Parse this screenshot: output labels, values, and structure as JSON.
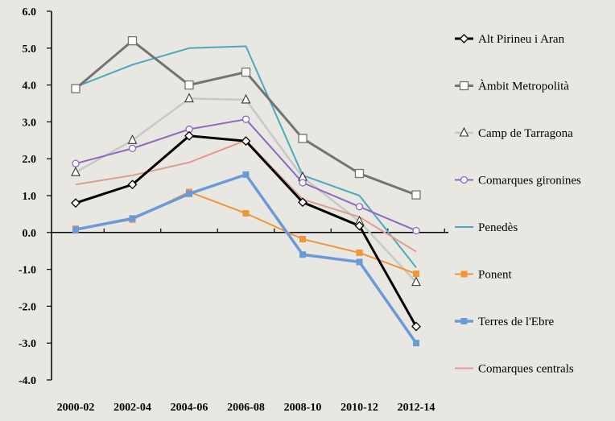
{
  "chart_data": {
    "type": "line",
    "title": "",
    "xlabel": "",
    "ylabel": "",
    "categories": [
      "2000-02",
      "2002-04",
      "2004-06",
      "2006-08",
      "2008-10",
      "2010-12",
      "2012-14"
    ],
    "yticks": [
      "6.0",
      "5.0",
      "4.0",
      "3.0",
      "2.0",
      "1.0",
      "0.0",
      "-1.0",
      "-2.0",
      "-3.0",
      "-4.0"
    ],
    "ylim": [
      -4,
      6
    ],
    "grid": false,
    "legend_position": "right",
    "series": [
      {
        "name": "Alt Pirineu i Aran",
        "color": "#000000",
        "marker": "diamond",
        "values": [
          0.8,
          1.3,
          2.62,
          2.48,
          0.82,
          0.18,
          -2.55
        ]
      },
      {
        "name": "Àmbit Metropolità",
        "color": "#737373",
        "marker": "square",
        "values": [
          3.9,
          5.2,
          4.0,
          4.35,
          2.55,
          1.6,
          1.02
        ]
      },
      {
        "name": "Camp de Tarragona",
        "color": "#c8c8c8",
        "marker": "triangle",
        "values": [
          1.63,
          2.5,
          3.63,
          3.6,
          1.5,
          0.3,
          -1.35
        ]
      },
      {
        "name": "Comarques gironines",
        "color": "#8e68be",
        "marker": "circle",
        "values": [
          1.87,
          2.28,
          2.8,
          3.07,
          1.35,
          0.7,
          0.05
        ]
      },
      {
        "name": "Penedès",
        "color": "#4aaabc",
        "marker": "none",
        "values": [
          3.95,
          4.55,
          5.0,
          5.05,
          1.55,
          1.0,
          -0.95
        ]
      },
      {
        "name": "Ponent",
        "color": "#f0963a",
        "marker": "smallsquare",
        "values": [
          0.1,
          0.35,
          1.1,
          0.52,
          -0.18,
          -0.55,
          -1.12
        ]
      },
      {
        "name": "Terres de l'Ebre",
        "color": "#6a9ad8",
        "marker": "smallsquare",
        "values": [
          0.08,
          0.38,
          1.05,
          1.57,
          -0.6,
          -0.8,
          -3.0
        ]
      },
      {
        "name": "Comarques centrals",
        "color": "#e29a94",
        "marker": "none",
        "values": [
          1.3,
          1.55,
          1.9,
          2.5,
          0.9,
          0.42,
          -0.52
        ]
      }
    ]
  }
}
